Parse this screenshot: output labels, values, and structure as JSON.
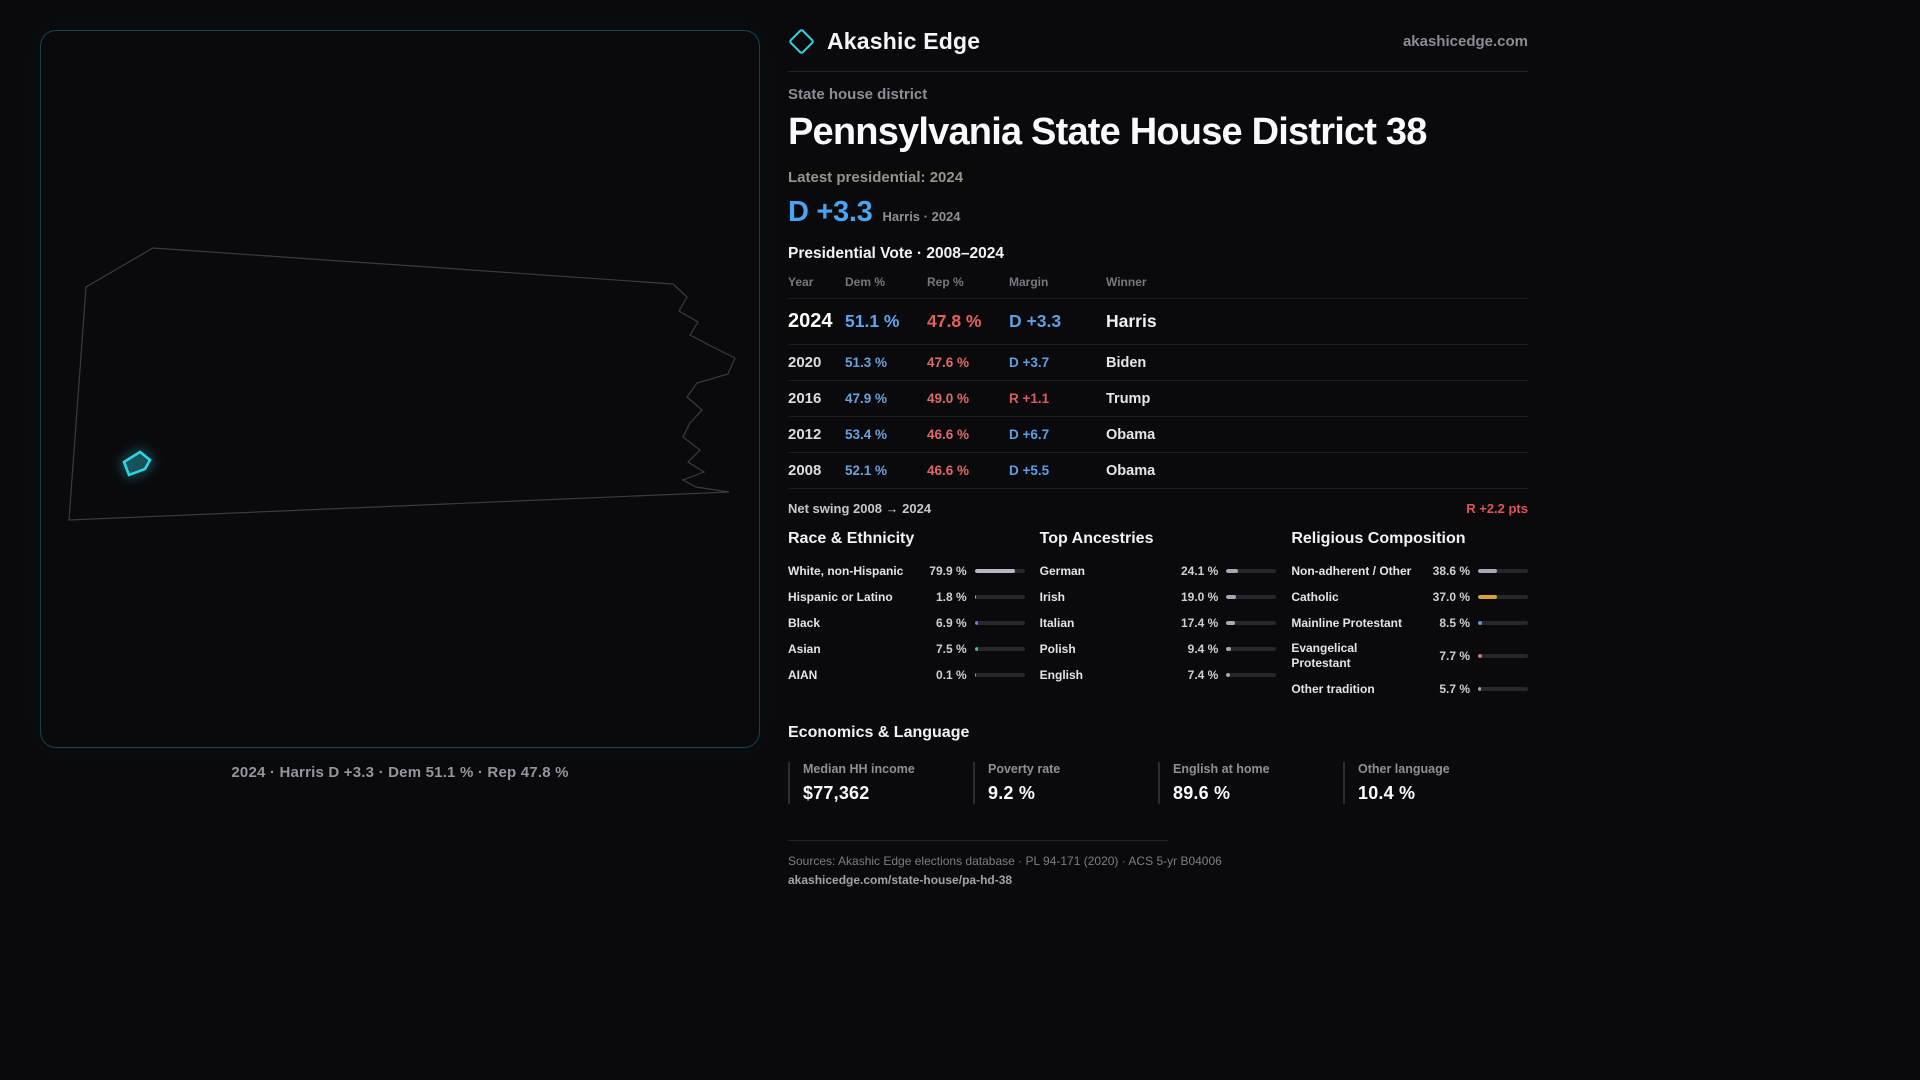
{
  "colors": {
    "background": "#0a0a0c",
    "accent_cyan": "#2fd3e6",
    "dem_blue": "#5b9fe6",
    "rep_red": "#e06363",
    "catholic_gold": "#d1a23c"
  },
  "brand": {
    "name": "Akashic Edge",
    "site": "akashicedge.com"
  },
  "header": {
    "kicker": "State house district",
    "title": "Pennsylvania State House District 38",
    "latest_label": "Latest presidential: 2024",
    "margin_value": "D +3.3",
    "margin_note": "Harris · 2024"
  },
  "map": {
    "caption": "2024 · Harris D +3.3 · Dem 51.1 % · Rep 47.8 %"
  },
  "vote_table": {
    "title": "Presidential Vote · 2008–2024",
    "columns": [
      "Year",
      "Dem %",
      "Rep %",
      "Margin",
      "Winner"
    ],
    "rows": [
      {
        "year": "2024",
        "dem": "51.1 %",
        "rep": "47.8 %",
        "margin": "D +3.3",
        "winner": "Harris"
      },
      {
        "year": "2020",
        "dem": "51.3 %",
        "rep": "47.6 %",
        "margin": "D +3.7",
        "winner": "Biden"
      },
      {
        "year": "2016",
        "dem": "47.9 %",
        "rep": "49.0 %",
        "margin": "R +1.1",
        "winner": "Trump"
      },
      {
        "year": "2012",
        "dem": "53.4 %",
        "rep": "46.6 %",
        "margin": "D +6.7",
        "winner": "Obama"
      },
      {
        "year": "2008",
        "dem": "52.1 %",
        "rep": "46.6 %",
        "margin": "D +5.5",
        "winner": "Obama"
      }
    ],
    "net_swing_label": "Net swing 2008 → 2024",
    "net_swing_value": "R +2.2 pts"
  },
  "demographics": [
    {
      "title": "Race & Ethnicity",
      "rows": [
        {
          "label": "White, non-Hispanic",
          "value": "79.9 %",
          "pct": 79.9,
          "color": "#b9b7c6"
        },
        {
          "label": "Hispanic or Latino",
          "value": "1.8 %",
          "pct": 1.8,
          "color": "#d9b24a"
        },
        {
          "label": "Black",
          "value": "6.9 %",
          "pct": 6.9,
          "color": "#7d6ee0"
        },
        {
          "label": "Asian",
          "value": "7.5 %",
          "pct": 7.5,
          "color": "#3fbf8f"
        },
        {
          "label": "AIAN",
          "value": "0.1 %",
          "pct": 0.1,
          "color": "#9fa3ad"
        }
      ]
    },
    {
      "title": "Top Ancestries",
      "rows": [
        {
          "label": "German",
          "value": "24.1 %",
          "pct": 24.1,
          "color": "#a6a9b3"
        },
        {
          "label": "Irish",
          "value": "19.0 %",
          "pct": 19.0,
          "color": "#a6a9b3"
        },
        {
          "label": "Italian",
          "value": "17.4 %",
          "pct": 17.4,
          "color": "#a6a9b3"
        },
        {
          "label": "Polish",
          "value": "9.4 %",
          "pct": 9.4,
          "color": "#a6a9b3"
        },
        {
          "label": "English",
          "value": "7.4 %",
          "pct": 7.4,
          "color": "#a6a9b3"
        }
      ]
    },
    {
      "title": "Religious Composition",
      "rows": [
        {
          "label": "Non-adherent / Other",
          "value": "38.6 %",
          "pct": 38.6,
          "color": "#a6a9b3"
        },
        {
          "label": "Catholic",
          "value": "37.0 %",
          "pct": 37.0,
          "color": "#d1a23c"
        },
        {
          "label": "Mainline Protestant",
          "value": "8.5 %",
          "pct": 8.5,
          "color": "#5b9bd5"
        },
        {
          "label": "Evangelical Protestant",
          "value": "7.7 %",
          "pct": 7.7,
          "color": "#e2697d"
        },
        {
          "label": "Other tradition",
          "value": "5.7 %",
          "pct": 5.7,
          "color": "#9fa3ad"
        }
      ]
    }
  ],
  "economics": {
    "title": "Economics & Language",
    "stats": [
      {
        "label": "Median HH income",
        "value": "$77,362"
      },
      {
        "label": "Poverty rate",
        "value": "9.2 %"
      },
      {
        "label": "English at home",
        "value": "89.6 %"
      },
      {
        "label": "Other language",
        "value": "10.4 %"
      }
    ]
  },
  "footer": {
    "sources": "Sources: Akashic Edge elections database · PL 94-171 (2020) · ACS 5-yr B04006",
    "url": "akashicedge.com/state-house/pa-hd-38"
  },
  "chart_data": [
    {
      "type": "table",
      "title": "Presidential Vote · 2008–2024",
      "columns": [
        "Year",
        "Dem %",
        "Rep %",
        "Margin",
        "Winner"
      ],
      "rows": [
        [
          2024,
          51.1,
          47.8,
          "D +3.3",
          "Harris"
        ],
        [
          2020,
          51.3,
          47.6,
          "D +3.7",
          "Biden"
        ],
        [
          2016,
          47.9,
          49.0,
          "R +1.1",
          "Trump"
        ],
        [
          2012,
          53.4,
          46.6,
          "D +6.7",
          "Obama"
        ],
        [
          2008,
          52.1,
          46.6,
          "D +5.5",
          "Obama"
        ]
      ],
      "annotations": [
        "Net swing 2008 → 2024: R +2.2 pts"
      ]
    },
    {
      "type": "bar",
      "title": "Race & Ethnicity",
      "categories": [
        "White, non-Hispanic",
        "Hispanic or Latino",
        "Black",
        "Asian",
        "AIAN"
      ],
      "values": [
        79.9,
        1.8,
        6.9,
        7.5,
        0.1
      ],
      "unit": "%",
      "xlim": [
        0,
        100
      ]
    },
    {
      "type": "bar",
      "title": "Top Ancestries",
      "categories": [
        "German",
        "Irish",
        "Italian",
        "Polish",
        "English"
      ],
      "values": [
        24.1,
        19.0,
        17.4,
        9.4,
        7.4
      ],
      "unit": "%",
      "xlim": [
        0,
        100
      ]
    },
    {
      "type": "bar",
      "title": "Religious Composition",
      "categories": [
        "Non-adherent / Other",
        "Catholic",
        "Mainline Protestant",
        "Evangelical Protestant",
        "Other tradition"
      ],
      "values": [
        38.6,
        37.0,
        8.5,
        7.7,
        5.7
      ],
      "unit": "%",
      "xlim": [
        0,
        100
      ]
    }
  ]
}
